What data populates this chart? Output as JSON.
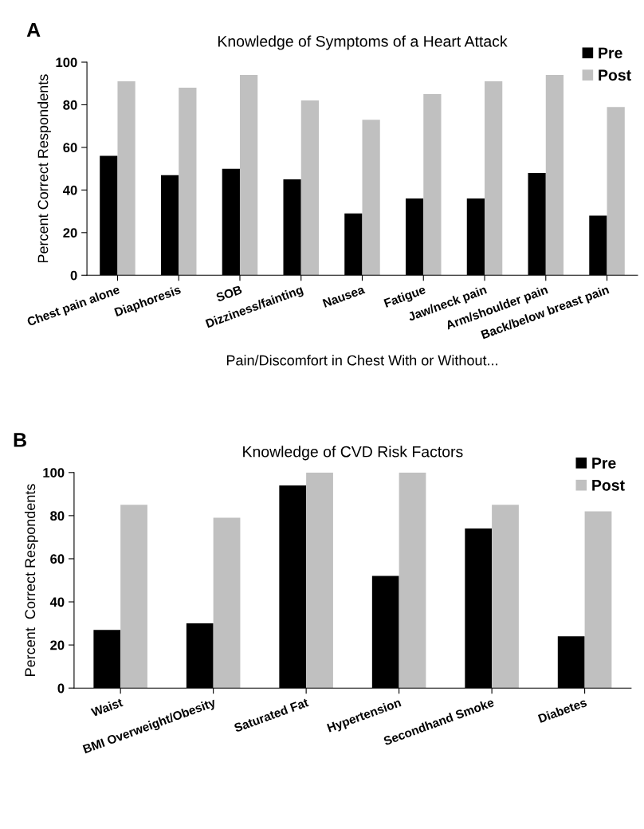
{
  "chart_data": [
    {
      "type": "bar",
      "title": "Knowledge of Symptoms of a Heart Attack",
      "ylabel": "Percent Correct Respondents",
      "xlabel": "Pain/Discomfort in Chest With or Without...",
      "annotations": [
        "A"
      ],
      "categories": [
        "Chest pain alone",
        "Diaphoresis",
        "SOB",
        "Dizziness/fainting",
        "Nausea",
        "Fatigue",
        "Jaw/neck pain",
        "Arm/shoulder pain",
        "Back/below breast pain"
      ],
      "series": [
        {
          "name": "Pre",
          "color": "#000000",
          "values": [
            56,
            47,
            50,
            45,
            29,
            36,
            36,
            48,
            28
          ]
        },
        {
          "name": "Post",
          "color": "#c0c0c0",
          "values": [
            91,
            88,
            94,
            82,
            73,
            85,
            91,
            94,
            79
          ]
        }
      ],
      "ylim": [
        0,
        100
      ],
      "yticks": [
        0,
        20,
        40,
        60,
        80,
        100
      ],
      "grid": false,
      "legend": "top right"
    },
    {
      "type": "bar",
      "title": "Knowledge of CVD Risk Factors",
      "ylabel": "Percent  Correct Respondents",
      "annotations": [
        "B"
      ],
      "categories": [
        "Waist",
        "BMI Overweight/Obesity",
        "Saturated Fat",
        "Hypertension",
        "Secondhand Smoke",
        "Diabetes"
      ],
      "series": [
        {
          "name": "Pre",
          "color": "#000000",
          "values": [
            27,
            30,
            94,
            52,
            74,
            24
          ]
        },
        {
          "name": "Post",
          "color": "#c0c0c0",
          "values": [
            85,
            79,
            100,
            100,
            85,
            82
          ]
        }
      ],
      "ylim": [
        0,
        100
      ],
      "yticks": [
        0,
        20,
        40,
        60,
        80,
        100
      ],
      "grid": false,
      "legend": "top right"
    }
  ]
}
